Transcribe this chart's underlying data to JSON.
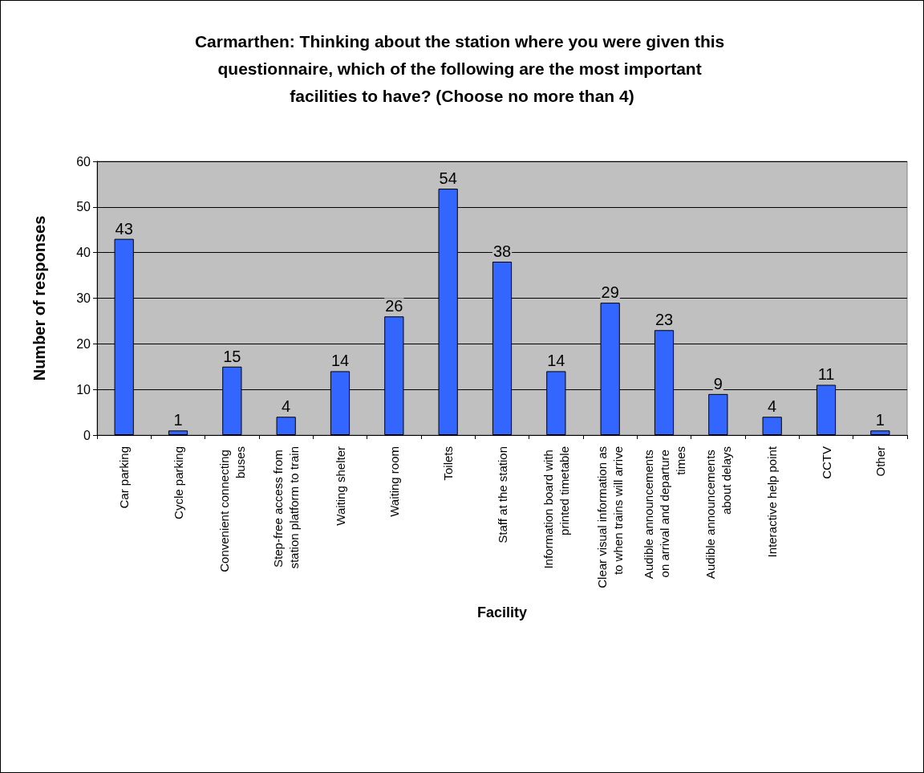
{
  "chart_data": {
    "type": "bar",
    "title": "Carmarthen: Thinking about the station where you were given this questionnaire, which of the following are the most important facilities to have? (Choose no more than 4)",
    "xlabel": "Facility",
    "ylabel": "Number of responses",
    "categories": [
      "Car parking",
      "Cycle parking",
      "Convenient connecting buses",
      "Step-free access from station platform to train",
      "Waiting shelter",
      "Waiting room",
      "Toilets",
      "Staff at the station",
      "Information board with printed timetable",
      "Clear visual information as to when trains will arrive",
      "Audible announcements on arrival and departure times",
      "Audible announcements about delays",
      "Interactive help point",
      "CCTV",
      "Other"
    ],
    "values": [
      43,
      1,
      15,
      4,
      14,
      26,
      54,
      38,
      14,
      29,
      23,
      9,
      4,
      11,
      1
    ],
    "color": "#3366ff",
    "ylim": [
      0,
      60
    ],
    "yticks": [
      0,
      10,
      20,
      30,
      40,
      50,
      60
    ],
    "grid": "y",
    "data_labels": true
  }
}
